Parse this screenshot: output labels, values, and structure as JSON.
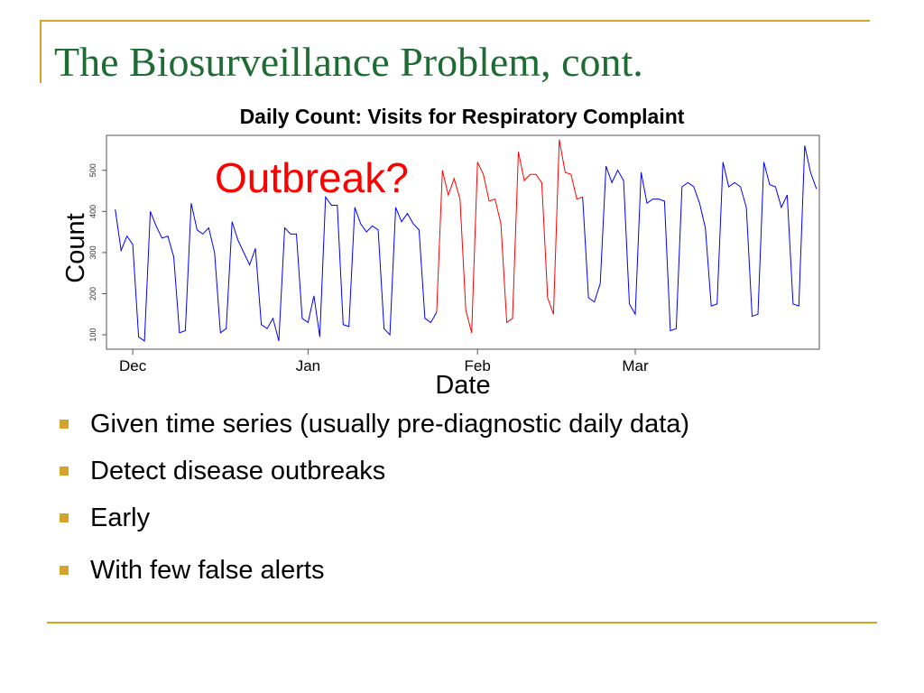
{
  "slide": {
    "title": "The Biosurveillance Problem, cont.",
    "bullets": [
      "Given time series (usually pre-diagnostic daily data)",
      "Detect disease outbreaks",
      "Early",
      "With few false alerts"
    ]
  },
  "colors": {
    "title": "#1f6b34",
    "accent": "#d4a42a",
    "normal_series": "#0000ff",
    "outbreak_series": "#ff0000",
    "annotation": "#ff0000"
  },
  "chart_data": {
    "type": "line",
    "title": "Daily Count: Visits for Respiratory Complaint",
    "xlabel": "Date",
    "ylabel": "Count",
    "annotation": "Outbreak?",
    "yticks": [
      100,
      200,
      300,
      400,
      500
    ],
    "ylim": [
      65,
      585
    ],
    "xlim": [
      -1.5,
      120.5
    ],
    "grid": false,
    "xticks": [
      {
        "label": "Dec",
        "day": 3
      },
      {
        "label": "Jan",
        "day": 33
      },
      {
        "label": "Feb",
        "day": 62
      },
      {
        "label": "Mar",
        "day": 89
      }
    ],
    "series": [
      {
        "color": "#0000ff",
        "start_day": 0,
        "values": [
          405,
          305,
          340,
          320,
          95,
          85,
          400,
          365,
          335,
          340,
          290,
          105,
          110,
          420,
          355,
          345,
          360,
          300,
          105,
          115,
          375,
          330,
          300,
          270,
          310,
          125,
          115,
          140,
          85,
          360,
          345,
          345,
          140,
          130,
          195,
          95,
          435,
          415,
          415,
          125,
          120,
          410,
          370,
          350,
          365,
          355,
          115,
          100,
          410,
          375,
          395,
          370,
          355,
          140,
          130,
          155
        ]
      },
      {
        "color": "#ff0000",
        "start_day": 55,
        "values": [
          155,
          500,
          440,
          480,
          430,
          160,
          105,
          520,
          490,
          425,
          430,
          370,
          130,
          140,
          545,
          475,
          490,
          490,
          470,
          190,
          150,
          575,
          495,
          490,
          430,
          435
        ]
      },
      {
        "color": "#0000ff",
        "start_day": 80,
        "values": [
          435,
          190,
          180,
          225,
          510,
          470,
          500,
          475,
          175,
          150,
          495,
          420,
          430,
          430,
          425,
          110,
          115,
          460,
          470,
          460,
          420,
          360,
          170,
          175,
          520,
          460,
          470,
          460,
          410,
          145,
          150,
          520,
          465,
          460,
          410,
          440,
          175,
          170,
          560,
          495,
          455
        ]
      }
    ]
  }
}
